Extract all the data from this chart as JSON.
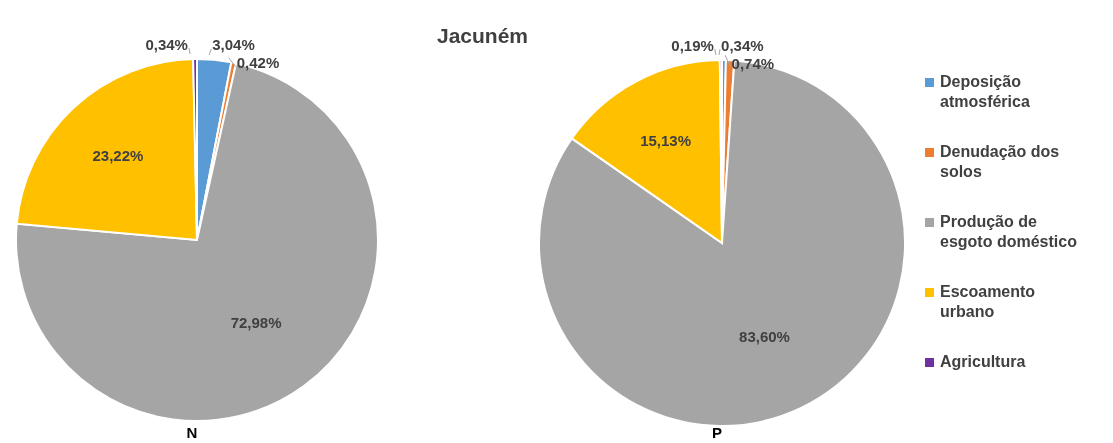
{
  "chart_data": [
    {
      "type": "pie",
      "xlabel": "N",
      "values": [
        3.04,
        0.42,
        72.98,
        23.22,
        0.34
      ],
      "colors": [
        "#5b9bd5",
        "#ed7d31",
        "#a5a5a5",
        "#ffc000",
        "#7030a0"
      ],
      "value_labels": [
        "3,04%",
        "0,42%",
        "72,98%",
        "23,22%",
        "0,34%"
      ]
    },
    {
      "type": "pie",
      "title": "Jacuném",
      "xlabel": "P",
      "categories": [
        "Deposição atmosférica",
        "Denudação dos solos",
        "Produção de esgoto doméstico",
        "Escoamento urbano",
        "Agricultura"
      ],
      "values": [
        0.34,
        0.74,
        83.6,
        15.13,
        0.19
      ],
      "colors": [
        "#5b9bd5",
        "#ed7d31",
        "#a5a5a5",
        "#ffc000",
        "#7030a0"
      ],
      "value_labels": [
        "0,34%",
        "0,74%",
        "83,60%",
        "15,13%",
        "0,19%"
      ],
      "legend": "right"
    }
  ]
}
